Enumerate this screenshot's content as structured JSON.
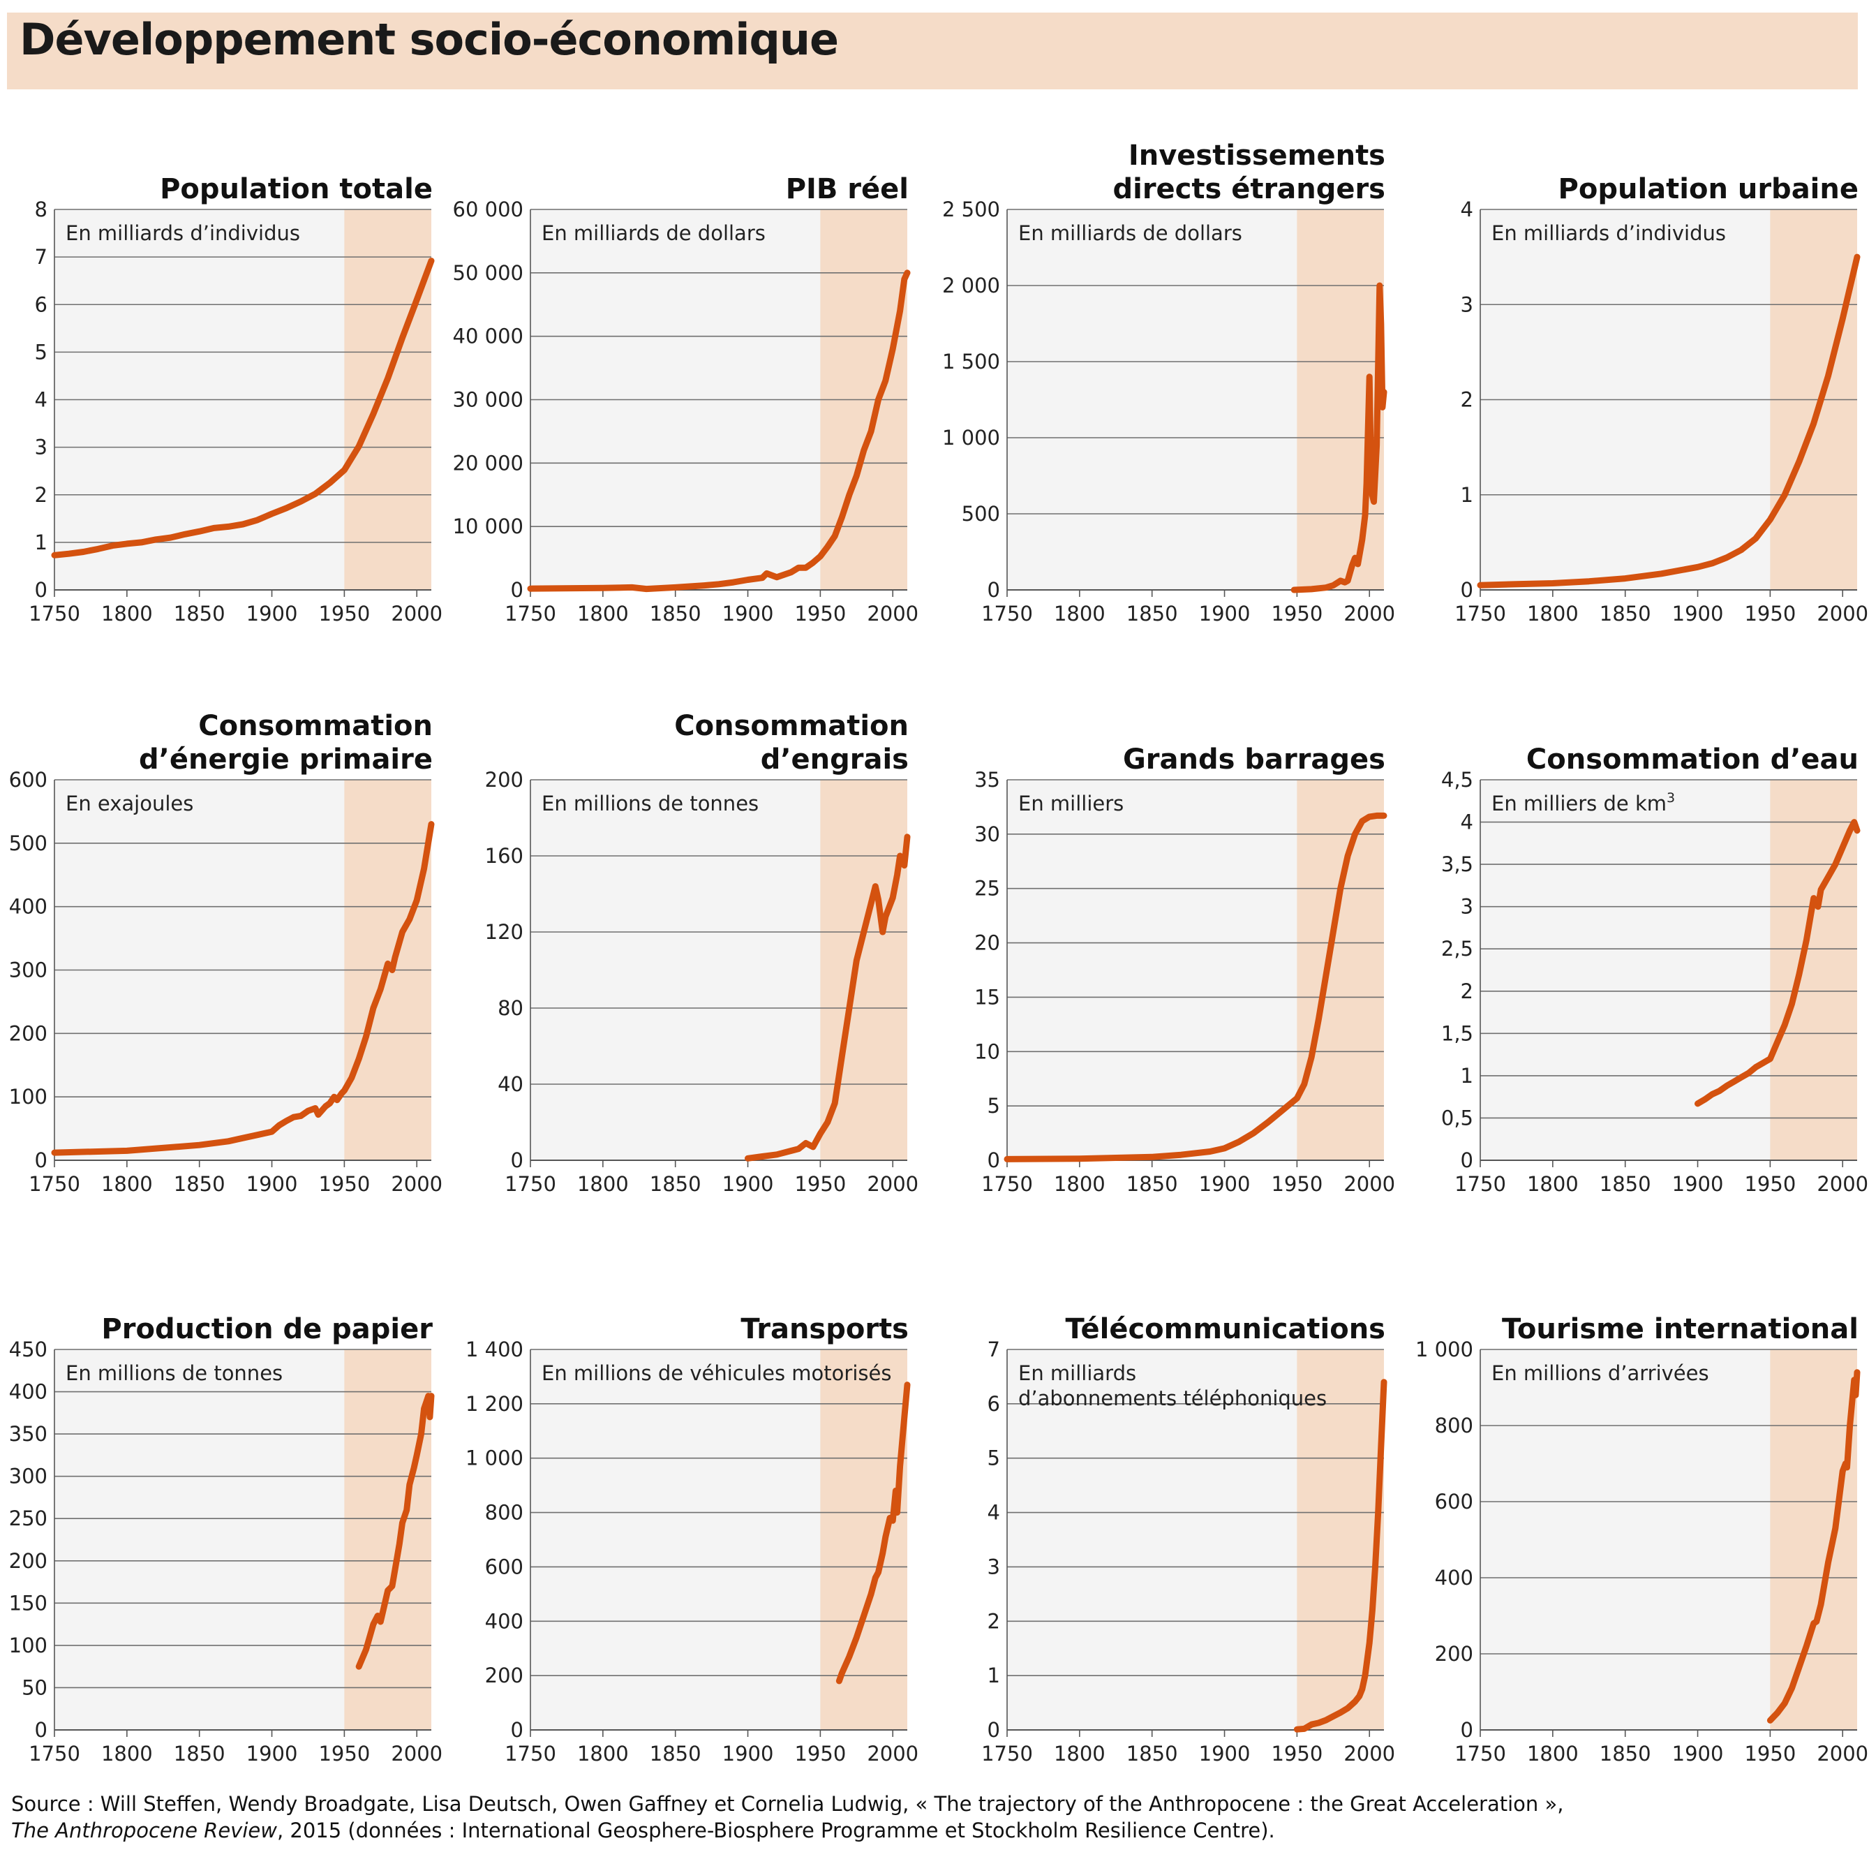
{
  "title": "Développement socio-économique",
  "colors": {
    "line": "#d4520f",
    "shade": "#f5dcc8",
    "panel": "#f4f4f4",
    "grid": "#6f6f6f",
    "banner": "#f5dcc8"
  },
  "source": {
    "line1": "Source : Will Steffen, Wendy Broadgate, Lisa Deutsch, Owen Gaffney et Cornelia Ludwig, « The trajectory of the Anthropocene : the Great Acceleration »,",
    "ref": "The Anthropocene Review",
    "line2": ", 2015 (données : International Geosphere-Biosphere Programme et Stockholm Resilience Centre)."
  },
  "chart_data": [
    {
      "type": "line",
      "title": [
        "Population  totale"
      ],
      "unit": [
        "En milliards d’individus"
      ],
      "xlim": [
        1750,
        2010
      ],
      "xticks": [
        1750,
        1800,
        1850,
        1900,
        1950,
        2000
      ],
      "xtick_labels": [
        "1750",
        "1800",
        "1850",
        "1900",
        "1950",
        "2000"
      ],
      "ylim": [
        0,
        8
      ],
      "yticks": [
        0,
        1,
        2,
        3,
        4,
        5,
        6,
        7,
        8
      ],
      "ytick_labels": [
        "0",
        "1",
        "2",
        "3",
        "4",
        "5",
        "6",
        "7",
        "8"
      ],
      "shade_from": 1950,
      "x": [
        1750,
        1760,
        1770,
        1780,
        1790,
        1800,
        1810,
        1820,
        1830,
        1840,
        1850,
        1860,
        1870,
        1880,
        1890,
        1900,
        1910,
        1920,
        1930,
        1940,
        1950,
        1960,
        1970,
        1980,
        1990,
        2000,
        2010
      ],
      "values": [
        0.73,
        0.76,
        0.8,
        0.86,
        0.93,
        0.97,
        1.0,
        1.06,
        1.1,
        1.17,
        1.23,
        1.3,
        1.33,
        1.38,
        1.47,
        1.6,
        1.72,
        1.86,
        2.02,
        2.25,
        2.52,
        3.02,
        3.7,
        4.45,
        5.3,
        6.1,
        6.92
      ]
    },
    {
      "type": "line",
      "title": [
        "PIB réel"
      ],
      "unit": [
        "En milliards de dollars"
      ],
      "xlim": [
        1750,
        2010
      ],
      "xticks": [
        1750,
        1800,
        1850,
        1900,
        1950,
        2000
      ],
      "xtick_labels": [
        "1750",
        "1800",
        "1850",
        "1900",
        "1950",
        "2000"
      ],
      "ylim": [
        0,
        60000
      ],
      "yticks": [
        0,
        10000,
        20000,
        30000,
        40000,
        50000,
        60000
      ],
      "ytick_labels": [
        "0",
        "10 000",
        "20 000",
        "30 000",
        "40 000",
        "50 000",
        "60 000"
      ],
      "shade_from": 1950,
      "x": [
        1750,
        1800,
        1820,
        1830,
        1850,
        1870,
        1880,
        1890,
        1900,
        1910,
        1913,
        1920,
        1930,
        1935,
        1940,
        1945,
        1950,
        1955,
        1960,
        1965,
        1970,
        1975,
        1980,
        1985,
        1990,
        1995,
        2000,
        2005,
        2008,
        2010
      ],
      "values": [
        200,
        300,
        400,
        150,
        400,
        700,
        900,
        1200,
        1600,
        1900,
        2600,
        2000,
        2800,
        3500,
        3500,
        4300,
        5300,
        6800,
        8500,
        11500,
        15000,
        18000,
        22000,
        25000,
        30000,
        33000,
        38000,
        44000,
        49000,
        50000
      ]
    },
    {
      "type": "line",
      "title": [
        "Investissements",
        "directs étrangers"
      ],
      "unit": [
        "En milliards de dollars"
      ],
      "xlim": [
        1750,
        2010
      ],
      "xticks": [
        1750,
        1800,
        1850,
        1900,
        1950,
        2000
      ],
      "xtick_labels": [
        "1750",
        "1800",
        "1850",
        "1900",
        "1950",
        "2000"
      ],
      "ylim": [
        0,
        2500
      ],
      "yticks": [
        0,
        500,
        1000,
        1500,
        2000,
        2500
      ],
      "ytick_labels": [
        "0",
        "500",
        "1 000",
        "1 500",
        "2 000",
        "2 500"
      ],
      "shade_from": 1950,
      "x": [
        1948,
        1960,
        1970,
        1975,
        1980,
        1983,
        1985,
        1988,
        1990,
        1992,
        1995,
        1997,
        1998,
        2000,
        2001,
        2002,
        2003,
        2005,
        2007,
        2008,
        2009,
        2010
      ],
      "values": [
        0,
        5,
        15,
        30,
        60,
        50,
        60,
        160,
        210,
        170,
        330,
        490,
        700,
        1400,
        830,
        620,
        580,
        950,
        2000,
        1750,
        1200,
        1300
      ]
    },
    {
      "type": "line",
      "title": [
        "Population urbaine"
      ],
      "unit": [
        "En milliards d’individus"
      ],
      "xlim": [
        1750,
        2010
      ],
      "xticks": [
        1750,
        1800,
        1850,
        1900,
        1950,
        2000
      ],
      "xtick_labels": [
        "1750",
        "1800",
        "1850",
        "1900",
        "1950",
        "2000"
      ],
      "ylim": [
        0,
        4
      ],
      "yticks": [
        0,
        1,
        2,
        3,
        4
      ],
      "ytick_labels": [
        "0",
        "1",
        "2",
        "3",
        "4"
      ],
      "shade_from": 1950,
      "x": [
        1750,
        1775,
        1800,
        1825,
        1850,
        1875,
        1900,
        1910,
        1920,
        1930,
        1940,
        1950,
        1960,
        1970,
        1980,
        1990,
        2000,
        2010
      ],
      "values": [
        0.05,
        0.06,
        0.07,
        0.09,
        0.12,
        0.17,
        0.24,
        0.28,
        0.34,
        0.42,
        0.54,
        0.74,
        1.0,
        1.35,
        1.75,
        2.25,
        2.85,
        3.5
      ]
    },
    {
      "type": "line",
      "title": [
        "Consommation",
        "d’énergie primaire"
      ],
      "unit": [
        "En exajoules"
      ],
      "xlim": [
        1750,
        2010
      ],
      "xticks": [
        1750,
        1800,
        1850,
        1900,
        1950,
        2000
      ],
      "xtick_labels": [
        "1750",
        "1800",
        "1850",
        "1900",
        "1950",
        "2000"
      ],
      "ylim": [
        0,
        600
      ],
      "yticks": [
        0,
        100,
        200,
        300,
        400,
        500,
        600
      ],
      "ytick_labels": [
        "0",
        "100",
        "200",
        "300",
        "400",
        "500",
        "600"
      ],
      "shade_from": 1950,
      "x": [
        1750,
        1800,
        1850,
        1870,
        1880,
        1890,
        1900,
        1905,
        1910,
        1915,
        1920,
        1925,
        1930,
        1932,
        1937,
        1940,
        1943,
        1945,
        1948,
        1950,
        1955,
        1960,
        1965,
        1970,
        1975,
        1980,
        1983,
        1985,
        1990,
        1995,
        2000,
        2005,
        2010
      ],
      "values": [
        12,
        15,
        24,
        30,
        35,
        40,
        45,
        55,
        62,
        68,
        70,
        78,
        82,
        72,
        85,
        90,
        100,
        95,
        105,
        110,
        130,
        160,
        195,
        240,
        270,
        310,
        300,
        320,
        360,
        380,
        410,
        460,
        530
      ]
    },
    {
      "type": "line",
      "title": [
        "Consommation",
        "d’engrais"
      ],
      "unit": [
        "En millions de tonnes"
      ],
      "xlim": [
        1750,
        2010
      ],
      "xticks": [
        1750,
        1800,
        1850,
        1900,
        1950,
        2000
      ],
      "xtick_labels": [
        "1750",
        "1800",
        "1850",
        "1900",
        "1950",
        "2000"
      ],
      "ylim": [
        0,
        200
      ],
      "yticks": [
        0,
        40,
        80,
        120,
        160,
        200
      ],
      "ytick_labels": [
        "0",
        "40",
        "80",
        "120",
        "160",
        "200"
      ],
      "shade_from": 1950,
      "x": [
        1900,
        1910,
        1920,
        1930,
        1935,
        1940,
        1945,
        1950,
        1955,
        1960,
        1965,
        1970,
        1975,
        1980,
        1985,
        1988,
        1990,
        1993,
        1995,
        2000,
        2003,
        2005,
        2008,
        2010
      ],
      "values": [
        1,
        2,
        3,
        5,
        6,
        9,
        7,
        14,
        20,
        30,
        55,
        80,
        105,
        120,
        135,
        144,
        137,
        120,
        128,
        138,
        150,
        160,
        155,
        170
      ]
    },
    {
      "type": "line",
      "title": [
        "Grands barrages"
      ],
      "unit": [
        "En milliers"
      ],
      "xlim": [
        1750,
        2010
      ],
      "xticks": [
        1750,
        1800,
        1850,
        1900,
        1950,
        2000
      ],
      "xtick_labels": [
        "1750",
        "1800",
        "1850",
        "1900",
        "1950",
        "2000"
      ],
      "ylim": [
        0,
        35
      ],
      "yticks": [
        0,
        5,
        10,
        15,
        20,
        25,
        30,
        35
      ],
      "ytick_labels": [
        "0",
        "5",
        "10",
        "15",
        "20",
        "25",
        "30",
        "35"
      ],
      "shade_from": 1950,
      "x": [
        1750,
        1800,
        1850,
        1870,
        1890,
        1900,
        1910,
        1920,
        1930,
        1940,
        1950,
        1955,
        1960,
        1965,
        1970,
        1975,
        1980,
        1985,
        1990,
        1995,
        2000,
        2005,
        2010
      ],
      "values": [
        0.1,
        0.15,
        0.3,
        0.5,
        0.8,
        1.1,
        1.7,
        2.5,
        3.5,
        4.6,
        5.7,
        7.0,
        9.5,
        13,
        17,
        21,
        25,
        28,
        30,
        31.2,
        31.6,
        31.7,
        31.7
      ]
    },
    {
      "type": "line",
      "title": [
        "Consommation d’eau"
      ],
      "unit": [
        "En milliers de km",
        "3"
      ],
      "xlim": [
        1750,
        2010
      ],
      "xticks": [
        1750,
        1800,
        1850,
        1900,
        1950,
        2000
      ],
      "xtick_labels": [
        "1750",
        "1800",
        "1850",
        "1900",
        "1950",
        "2000"
      ],
      "ylim": [
        0,
        4.5
      ],
      "yticks": [
        0,
        0.5,
        1,
        1.5,
        2,
        2.5,
        3,
        3.5,
        4,
        4.5
      ],
      "ytick_labels": [
        "0",
        "0,5",
        "1",
        "1,5",
        "2",
        "2,5",
        "3",
        "3,5",
        "4",
        "4,5"
      ],
      "shade_from": 1950,
      "x": [
        1900,
        1905,
        1910,
        1915,
        1920,
        1925,
        1930,
        1935,
        1940,
        1945,
        1950,
        1955,
        1960,
        1965,
        1970,
        1975,
        1980,
        1983,
        1985,
        1990,
        1995,
        2000,
        2005,
        2008,
        2010
      ],
      "values": [
        0.67,
        0.72,
        0.78,
        0.82,
        0.88,
        0.93,
        0.98,
        1.03,
        1.1,
        1.15,
        1.2,
        1.4,
        1.6,
        1.85,
        2.2,
        2.6,
        3.1,
        3.0,
        3.2,
        3.35,
        3.5,
        3.7,
        3.9,
        4.0,
        3.9
      ]
    },
    {
      "type": "line",
      "title": [
        "Production  de papier"
      ],
      "unit": [
        "En millions de tonnes"
      ],
      "xlim": [
        1750,
        2010
      ],
      "xticks": [
        1750,
        1800,
        1850,
        1900,
        1950,
        2000
      ],
      "xtick_labels": [
        "1750",
        "1800",
        "1850",
        "1900",
        "1950",
        "2000"
      ],
      "ylim": [
        0,
        450
      ],
      "yticks": [
        0,
        50,
        100,
        150,
        200,
        250,
        300,
        350,
        400,
        450
      ],
      "ytick_labels": [
        "0",
        "50",
        "100",
        "150",
        "200",
        "250",
        "300",
        "350",
        "400",
        "450"
      ],
      "shade_from": 1950,
      "x": [
        1960,
        1965,
        1970,
        1973,
        1975,
        1978,
        1980,
        1983,
        1985,
        1988,
        1990,
        1993,
        1995,
        1998,
        2000,
        2003,
        2005,
        2008,
        2009,
        2010
      ],
      "values": [
        75,
        95,
        125,
        135,
        128,
        150,
        165,
        170,
        190,
        220,
        245,
        260,
        290,
        310,
        325,
        350,
        380,
        395,
        370,
        395
      ]
    },
    {
      "type": "line",
      "title": [
        "Transports"
      ],
      "unit": [
        "En millions de véhicules motorisés"
      ],
      "xlim": [
        1750,
        2010
      ],
      "xticks": [
        1750,
        1800,
        1850,
        1900,
        1950,
        2000
      ],
      "xtick_labels": [
        "1750",
        "1800",
        "1850",
        "1900",
        "1950",
        "2000"
      ],
      "ylim": [
        0,
        1400
      ],
      "yticks": [
        0,
        200,
        400,
        600,
        800,
        1000,
        1200,
        1400
      ],
      "ytick_labels": [
        "0",
        "200",
        "400",
        "600",
        "800",
        "1 000",
        "1 200",
        "1 400"
      ],
      "shade_from": 1950,
      "x": [
        1963,
        1965,
        1970,
        1975,
        1980,
        1985,
        1988,
        1990,
        1993,
        1995,
        1998,
        2000,
        2002,
        2003,
        2005,
        2008,
        2010
      ],
      "values": [
        180,
        210,
        270,
        340,
        420,
        500,
        560,
        580,
        650,
        710,
        780,
        770,
        880,
        800,
        970,
        1150,
        1270
      ]
    },
    {
      "type": "line",
      "title": [
        "Télécommunications"
      ],
      "unit": [
        "En milliards",
        "d’abonnements téléphoniques"
      ],
      "xlim": [
        1750,
        2010
      ],
      "xticks": [
        1750,
        1800,
        1850,
        1900,
        1950,
        2000
      ],
      "xtick_labels": [
        "1750",
        "1800",
        "1850",
        "1900",
        "1950",
        "2000"
      ],
      "ylim": [
        0,
        7
      ],
      "yticks": [
        0,
        1,
        2,
        3,
        4,
        5,
        6,
        7
      ],
      "ytick_labels": [
        "0",
        "1",
        "2",
        "3",
        "4",
        "5",
        "6",
        "7"
      ],
      "shade_from": 1950,
      "x": [
        1950,
        1955,
        1960,
        1965,
        1970,
        1975,
        1980,
        1985,
        1990,
        1993,
        1995,
        1997,
        2000,
        2002,
        2004,
        2006,
        2008,
        2010
      ],
      "values": [
        0.01,
        0.02,
        0.1,
        0.13,
        0.18,
        0.25,
        0.32,
        0.4,
        0.52,
        0.62,
        0.75,
        1.0,
        1.6,
        2.2,
        3.0,
        4.0,
        5.2,
        6.4
      ]
    },
    {
      "type": "line",
      "title": [
        "Tourisme international"
      ],
      "unit": [
        "En millions d’arrivées"
      ],
      "xlim": [
        1750,
        2010
      ],
      "xticks": [
        1750,
        1800,
        1850,
        1900,
        1950,
        2000
      ],
      "xtick_labels": [
        "1750",
        "1800",
        "1850",
        "1900",
        "1950",
        "2000"
      ],
      "ylim": [
        0,
        1000
      ],
      "yticks": [
        0,
        200,
        400,
        600,
        800,
        1000
      ],
      "ytick_labels": [
        "0",
        "200",
        "400",
        "600",
        "800",
        "1 000"
      ],
      "shade_from": 1950,
      "x": [
        1950,
        1955,
        1960,
        1965,
        1970,
        1975,
        1980,
        1982,
        1985,
        1990,
        1995,
        2000,
        2002,
        2003,
        2005,
        2008,
        2009,
        2010
      ],
      "values": [
        25,
        45,
        70,
        110,
        165,
        220,
        280,
        285,
        330,
        440,
        530,
        680,
        700,
        690,
        800,
        920,
        880,
        940
      ]
    }
  ]
}
